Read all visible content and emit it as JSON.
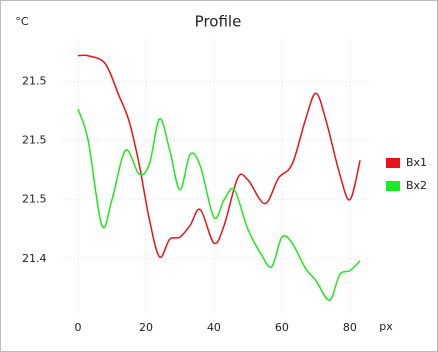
{
  "chart_data": {
    "type": "line",
    "title": "Profile",
    "y_label": "°C",
    "x_label": "px",
    "xlim": [
      -4.7,
      86.5
    ],
    "xticks": [
      0,
      20,
      40,
      60,
      80
    ],
    "ylim": [
      21.41,
      21.552
    ],
    "yticks": [
      {
        "value": 21.53,
        "label": "21.5"
      },
      {
        "value": 21.5,
        "label": "21.5"
      },
      {
        "value": 21.47,
        "label": "21.5"
      },
      {
        "value": 21.44,
        "label": "21.4"
      }
    ],
    "grid": true,
    "legend": "right",
    "series": [
      {
        "name": "Bx1",
        "color": "#e8141b",
        "x": [
          0,
          3,
          8,
          12,
          15,
          18,
          21,
          24,
          27,
          30,
          33,
          36,
          40,
          43,
          47,
          50,
          55,
          59,
          63,
          67,
          70,
          73,
          77,
          80,
          83
        ],
        "values": [
          21.543,
          21.543,
          21.539,
          21.523,
          21.51,
          21.488,
          21.46,
          21.441,
          21.45,
          21.451,
          21.457,
          21.465,
          21.448,
          21.457,
          21.481,
          21.48,
          21.468,
          21.481,
          21.488,
          21.511,
          21.524,
          21.51,
          21.483,
          21.47,
          21.49
        ]
      },
      {
        "name": "Bx2",
        "color": "#1ee81e",
        "x": [
          0,
          3,
          7,
          10,
          14,
          18,
          21,
          24,
          27,
          30,
          33,
          36,
          40,
          43,
          46,
          50,
          54,
          57,
          60,
          63,
          67,
          70,
          74,
          77,
          80,
          83
        ],
        "values": [
          21.516,
          21.5,
          21.457,
          21.47,
          21.495,
          21.483,
          21.488,
          21.511,
          21.495,
          21.475,
          21.493,
          21.487,
          21.461,
          21.47,
          21.475,
          21.455,
          21.442,
          21.436,
          21.451,
          21.448,
          21.435,
          21.429,
          21.419,
          21.432,
          21.434,
          21.439
        ]
      }
    ]
  }
}
